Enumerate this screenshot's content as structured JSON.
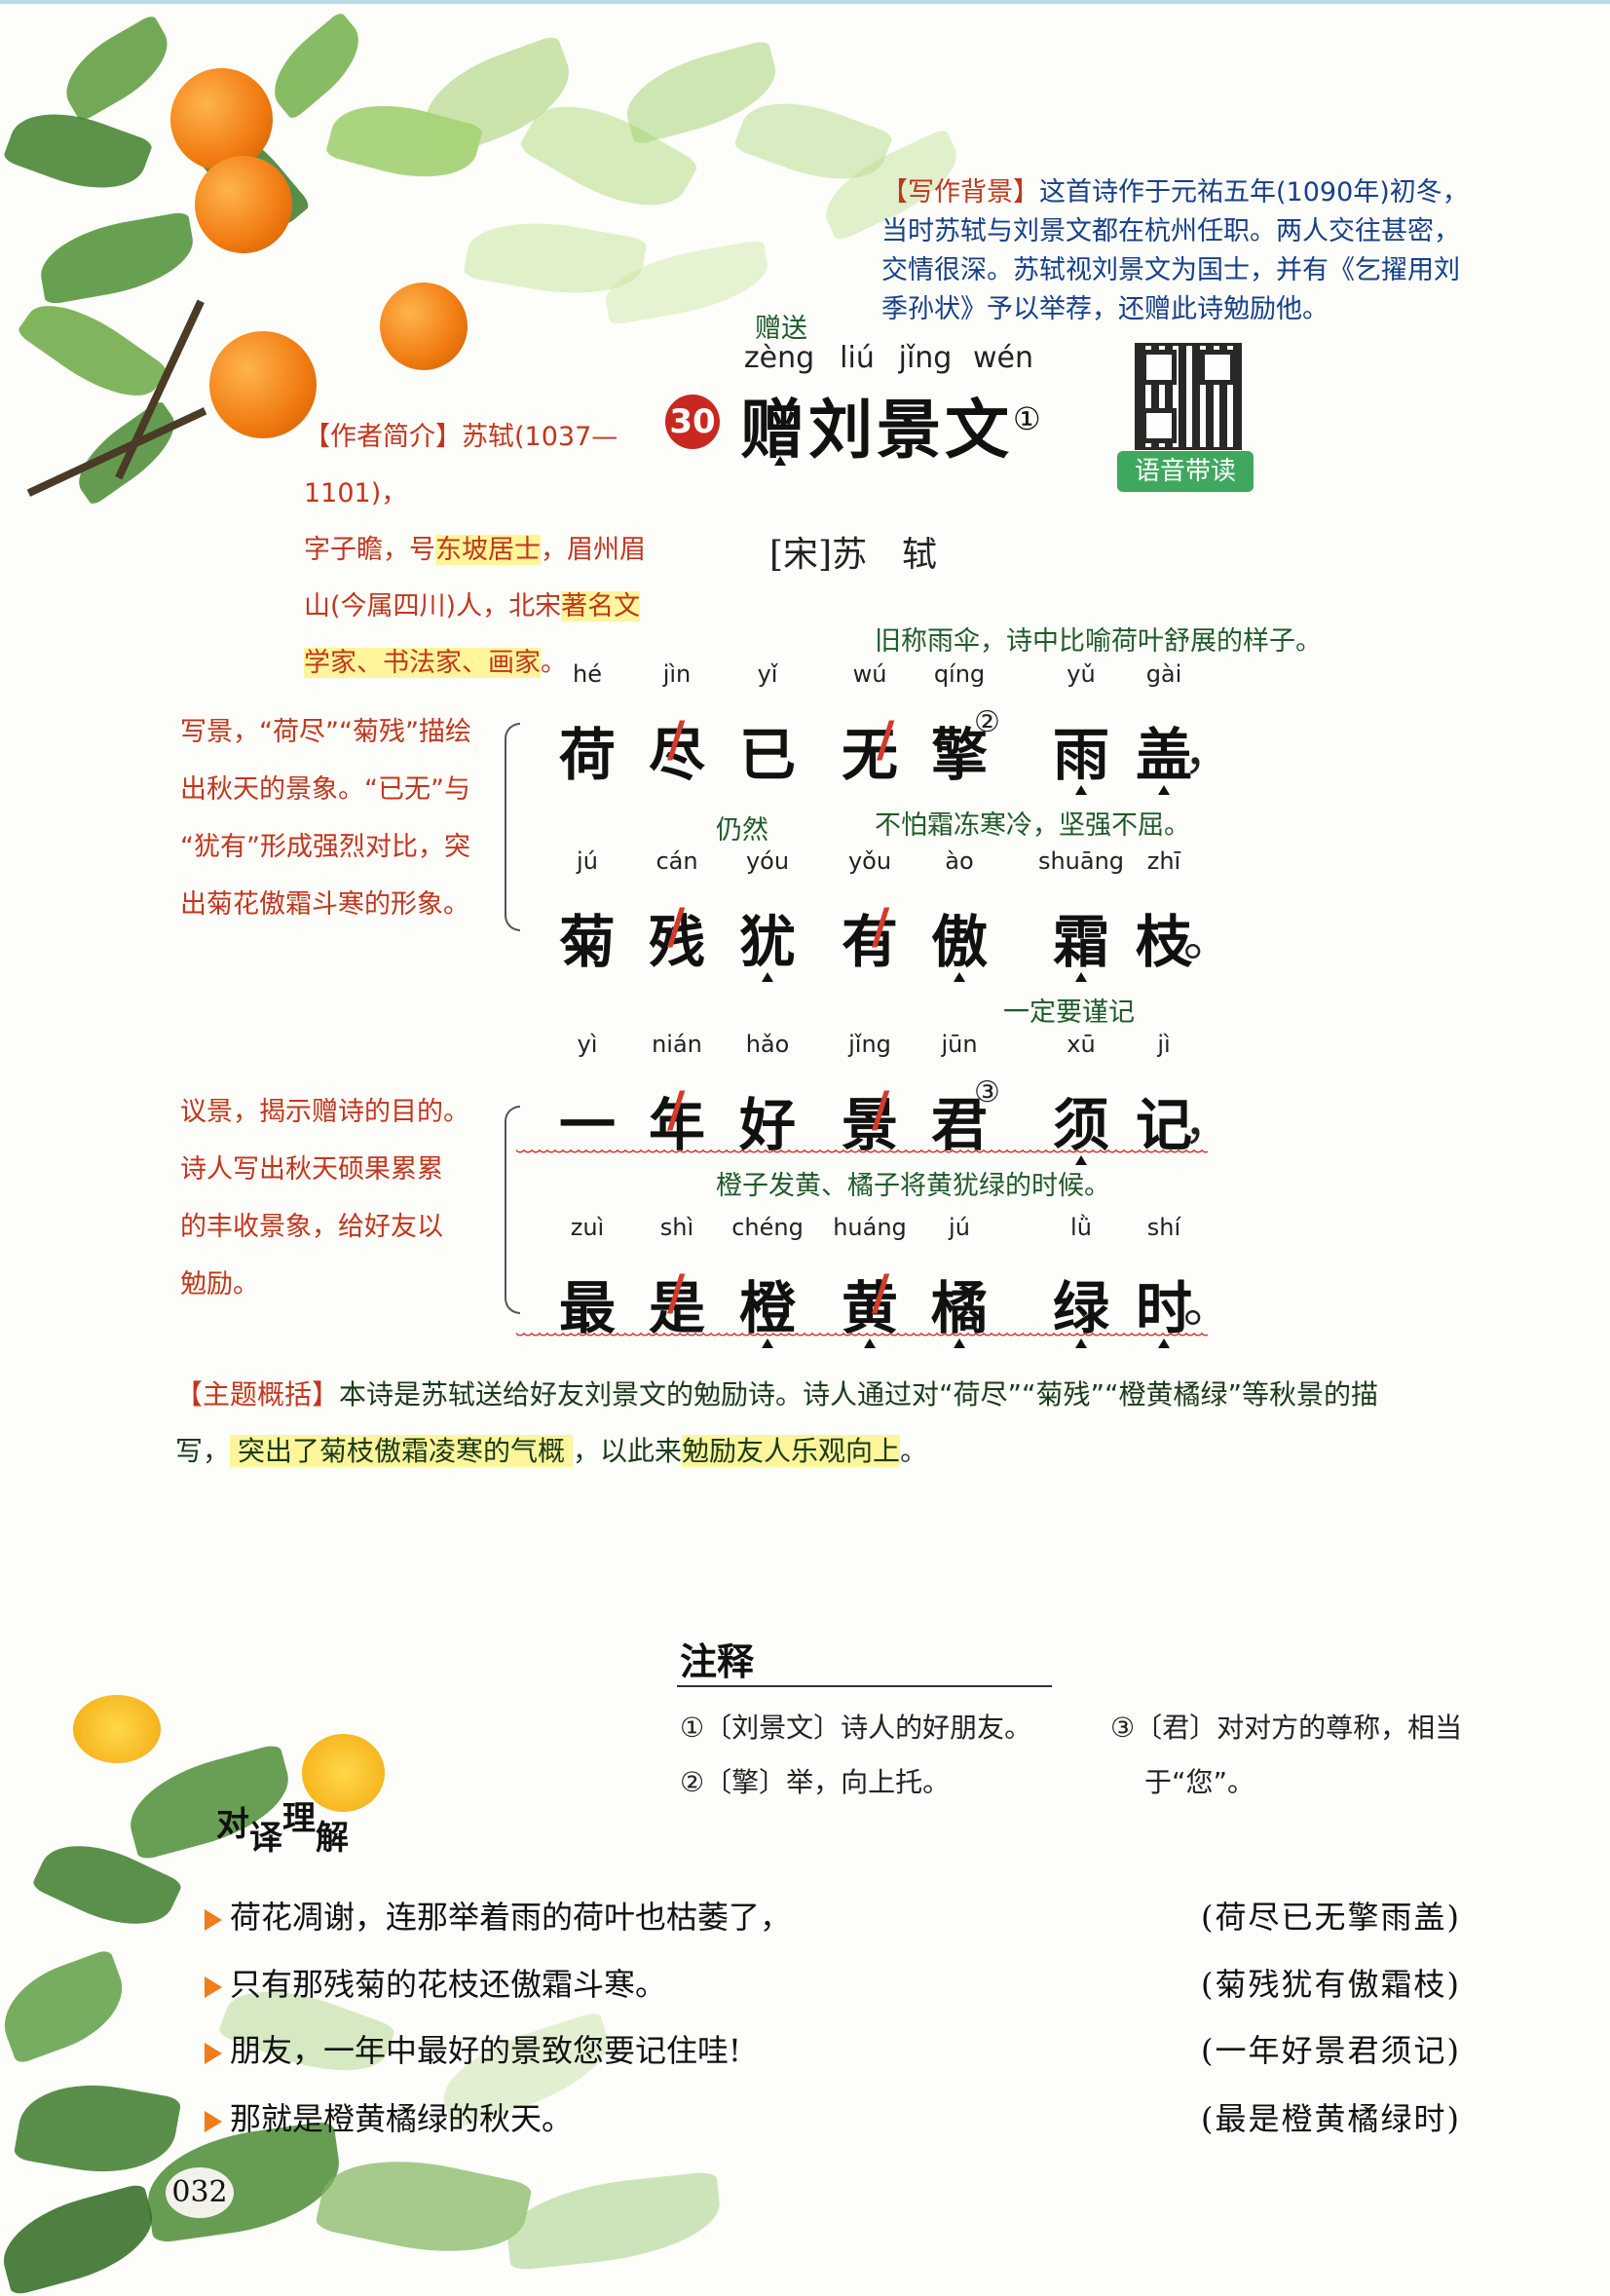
{
  "background": {
    "label": "【写作背景】",
    "text": "这首诗作于元祐五年(1090年)初冬，当时苏轼与刘景文都在杭州任职。两人交往甚密，交情很深。苏轼视刘景文为国士，并有《乞擢用刘季孙状》予以举荐，还赠此诗勉励他。"
  },
  "author": {
    "label": "【作者简介】",
    "l1": "苏轼(1037—1101)，",
    "l2": "字子瞻，号",
    "l2b": "东坡居士",
    "l2c": "，眉州眉",
    "l3a": "山(今属四川)人，北宋",
    "l3b": "著名文",
    "l4": "学家、书法家、画家",
    "l4end": "。"
  },
  "title": {
    "gloss": "赠送",
    "pinyin": [
      "zèng",
      "liú",
      "jǐng",
      "wén"
    ],
    "number": "30",
    "text": "赠刘景文",
    "note_mark": "①",
    "dynasty_author": "[宋]苏　轼",
    "audio_label": "语音带读"
  },
  "poem": [
    {
      "gloss": "旧称雨伞，诗中比喻荷叶舒展的样子。",
      "pinyin": [
        "hé",
        "jìn",
        "yǐ",
        "wú",
        "qíng",
        "yǔ",
        "gài"
      ],
      "chars": [
        "荷",
        "尽",
        "已",
        "无",
        "擎",
        "雨",
        "盖"
      ],
      "mark": "②",
      "punct": "，"
    },
    {
      "gloss1": "仍然",
      "gloss2": "不怕霜冻寒冷，坚强不屈。",
      "pinyin": [
        "jú",
        "cán",
        "yóu",
        "yǒu",
        "ào",
        "shuāng",
        "zhī"
      ],
      "chars": [
        "菊",
        "残",
        "犹",
        "有",
        "傲",
        "霜",
        "枝"
      ],
      "punct": "。"
    },
    {
      "gloss": "一定要谨记",
      "pinyin": [
        "yì",
        "nián",
        "hǎo",
        "jǐng",
        "jūn",
        "xū",
        "jì"
      ],
      "chars": [
        "一",
        "年",
        "好",
        "景",
        "君",
        "须",
        "记"
      ],
      "mark": "③",
      "punct": "，"
    },
    {
      "gloss": "橙子发黄、橘子将黄犹绿的时候。",
      "pinyin": [
        "zuì",
        "shì",
        "chéng",
        "huáng",
        "jú",
        "lǜ",
        "shí"
      ],
      "chars": [
        "最",
        "是",
        "橙",
        "黄",
        "橘",
        "绿",
        "时"
      ],
      "punct": "。"
    }
  ],
  "side_notes": {
    "first": [
      "写景，“荷尽”“菊残”描绘",
      "出秋天的景象。“已无”与",
      "“犹有”形成强烈对比，突",
      "出菊花傲霜斗寒的形象。"
    ],
    "second": [
      "议景，揭示赠诗的目的。",
      "诗人写出秋天硕果累累",
      "的丰收景象，给好友以",
      "勉励。"
    ]
  },
  "theme": {
    "label": "【主题概括】",
    "l1": "本诗是苏轼送给好友刘景文的勉励诗。诗人通过对“荷尽”“菊残”“橙黄橘绿”等秋景的描",
    "l2a": "写，",
    "l2b": "突出了菊枝傲霜凌寒的气概",
    "l2c": "，以此来",
    "l2d": "勉励友人乐观向上",
    "l2e": "。"
  },
  "notes": {
    "heading": "注释",
    "n1": "①〔刘景文〕诗人的好朋友。",
    "n2": "②〔擎〕举，向上托。",
    "n3a": "③〔君〕对对方的尊称，相当",
    "n3b": "于“您”。"
  },
  "translation": {
    "heading_a": "对",
    "heading_b": "译",
    "heading_c": "理",
    "heading_d": "解",
    "rows": [
      {
        "text": "荷花凋谢，连那举着雨的荷叶也枯萎了，",
        "orig": "(荷尽已无擎雨盖)"
      },
      {
        "text": "只有那残菊的花枝还傲霜斗寒。",
        "orig": "(菊残犹有傲霜枝)"
      },
      {
        "text": "朋友，一年中最好的景致您要记住哇!",
        "orig": "(一年好景君须记)"
      },
      {
        "text": "那就是橙黄橘绿的秋天。",
        "orig": "(最是橙黄橘绿时)"
      }
    ]
  },
  "page_number": "032"
}
